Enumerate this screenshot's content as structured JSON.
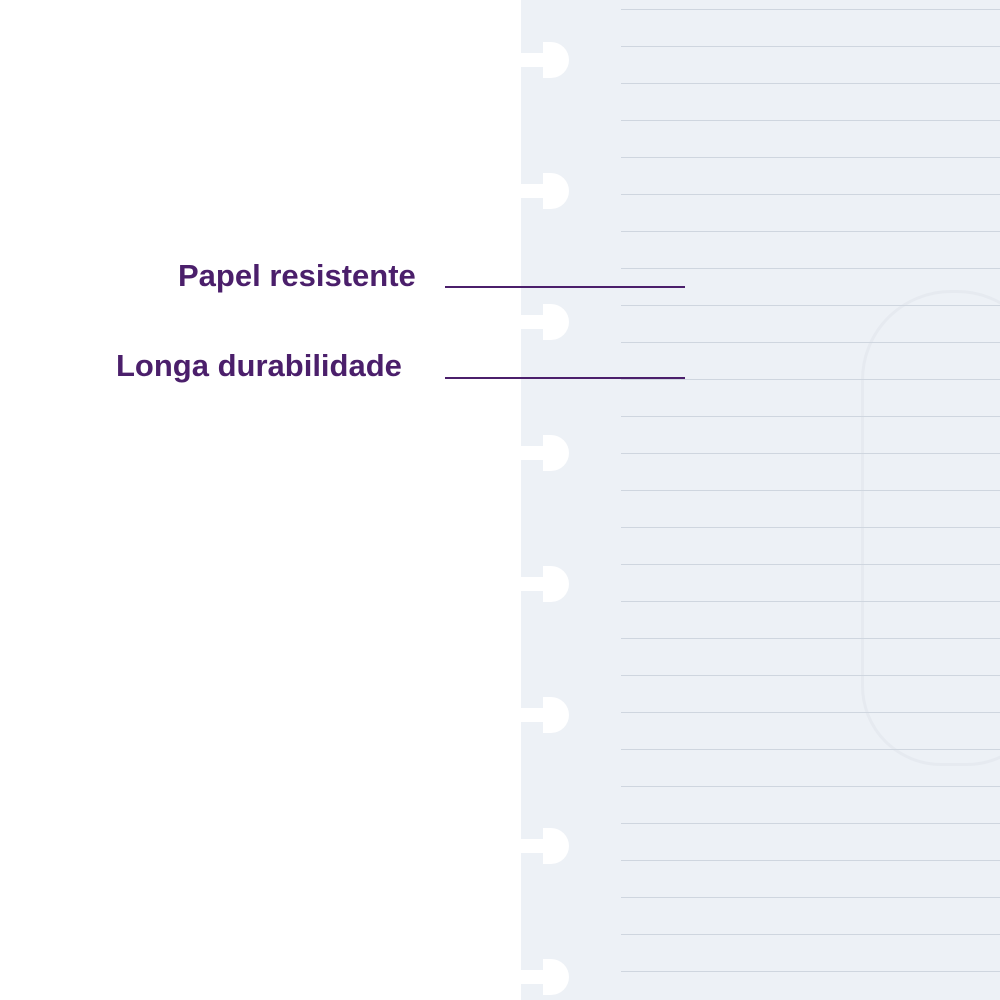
{
  "features": [
    {
      "label": "Papel resistente"
    },
    {
      "label": "Longa durabilidade"
    }
  ],
  "colors": {
    "text": "#4b1f6b",
    "paper": "#edf1f6",
    "rule": "#cfd6df"
  },
  "icons": {
    "binder_disc": "disc-hole-icon",
    "watermark": "crest-watermark-icon"
  }
}
